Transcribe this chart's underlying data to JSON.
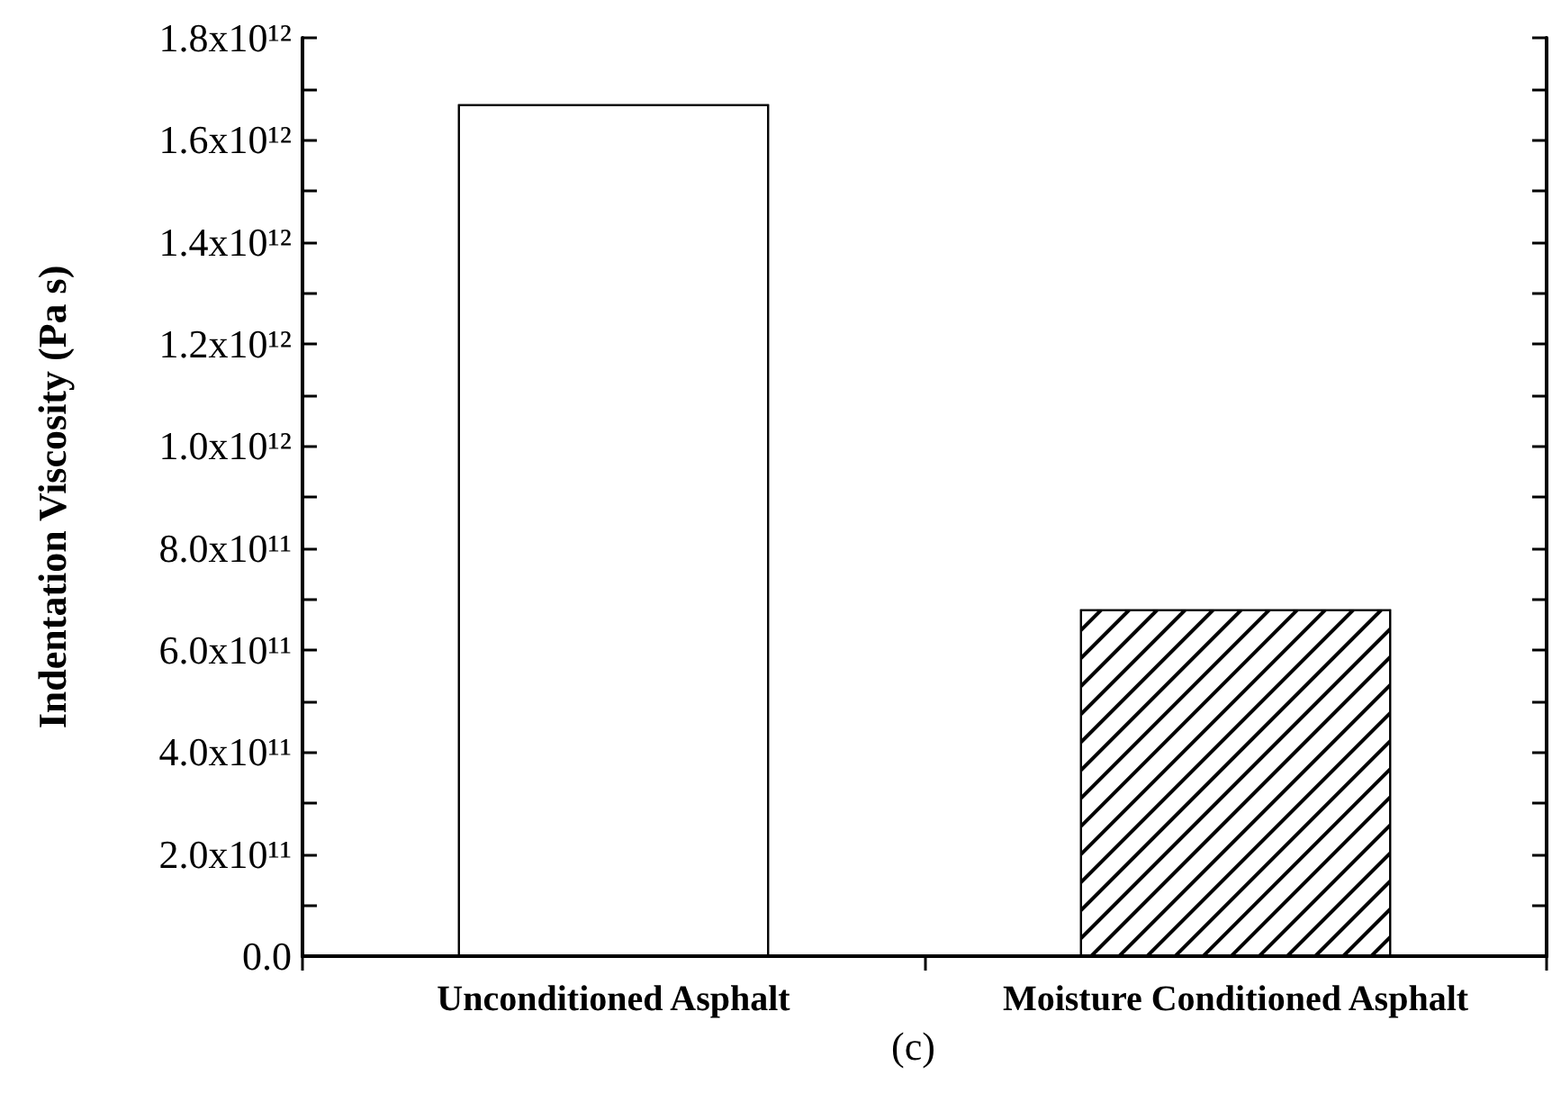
{
  "chart_data": {
    "type": "bar",
    "ylabel": "Indentation Viscosity (Pa s)",
    "categories": [
      "Unconditioned Asphalt",
      "Moisture Conditioned Asphalt"
    ],
    "values": [
      1670000000000.0,
      680000000000.0
    ],
    "colors": [
      "#ffffff",
      "#ffffff"
    ],
    "ylim": [
      0,
      1800000000000.0
    ],
    "yticks": [
      {
        "value": 0,
        "label": "0.0"
      },
      {
        "value": 200000000000.0,
        "label": "2.0x10¹¹"
      },
      {
        "value": 400000000000.0,
        "label": "4.0x10¹¹"
      },
      {
        "value": 600000000000.0,
        "label": "6.0x10¹¹"
      },
      {
        "value": 800000000000.0,
        "label": "8.0x10¹¹"
      },
      {
        "value": 1000000000000.0,
        "label": "1.0x10¹²"
      },
      {
        "value": 1200000000000.0,
        "label": "1.2x10¹²"
      },
      {
        "value": 1400000000000.0,
        "label": "1.4x10¹²"
      },
      {
        "value": 1600000000000.0,
        "label": "1.6x10¹²"
      },
      {
        "value": 1800000000000.0,
        "label": "1.8x10¹²"
      }
    ],
    "annotations": [
      "(c)"
    ],
    "grid": false
  }
}
